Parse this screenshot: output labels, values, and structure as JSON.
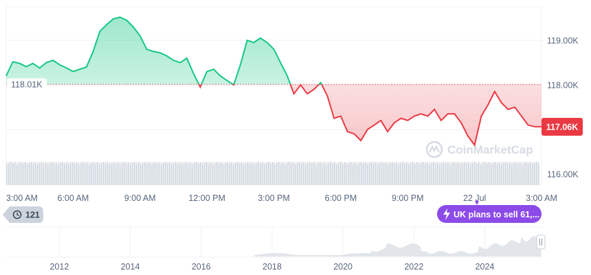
{
  "chart_data": {
    "type": "area",
    "currency_suffix": "K",
    "baseline": 118.01,
    "baseline_label": "118.01K",
    "current_price_label": "117.06K",
    "y_axis": {
      "ticks": [
        "119.00K",
        "118.00K",
        "117.00K",
        "116.00K"
      ],
      "tick_values": [
        119.0,
        118.0,
        117.0,
        116.0
      ]
    },
    "ylim": [
      115.75,
      119.75
    ],
    "xlim": [
      0,
      24
    ],
    "x_axis": {
      "tick_labels": [
        "3:00 AM",
        "6:00 AM",
        "9:00 AM",
        "12:00 PM",
        "3:00 PM",
        "6:00 PM",
        "9:00 PM",
        "22 Jul",
        "3:00 AM"
      ],
      "tick_hours": [
        0,
        3,
        6,
        9,
        12,
        15,
        18,
        21,
        24
      ]
    },
    "series": [
      {
        "x": [
          0.0,
          0.3,
          0.6,
          0.9,
          1.2,
          1.5,
          1.8,
          2.1,
          2.4,
          2.7,
          3.0,
          3.3,
          3.6,
          3.9,
          4.2,
          4.5,
          4.8,
          5.1,
          5.4,
          5.7,
          6.0,
          6.3,
          6.6,
          6.9,
          7.2,
          7.5,
          7.8,
          8.1,
          8.4,
          8.7,
          9.0,
          9.3,
          9.6,
          9.9,
          10.2,
          10.5,
          10.8,
          11.1,
          11.4,
          11.7,
          12.0,
          12.3,
          12.6,
          12.9,
          13.2,
          13.5,
          13.8,
          14.1,
          14.4,
          14.7,
          15.0,
          15.3,
          15.6,
          15.9,
          16.2,
          16.5,
          16.8,
          17.1,
          17.4,
          17.7,
          18.0,
          18.3,
          18.6,
          18.9,
          19.2,
          19.5,
          19.8,
          20.1,
          20.4,
          20.7,
          21.0,
          21.3,
          21.6,
          21.9,
          22.2,
          22.5,
          22.8,
          23.1,
          23.4,
          23.7,
          24.0
        ],
        "y": [
          118.2,
          118.52,
          118.48,
          118.41,
          118.48,
          118.38,
          118.5,
          118.55,
          118.45,
          118.38,
          118.3,
          118.35,
          118.4,
          118.75,
          119.2,
          119.35,
          119.48,
          119.52,
          119.45,
          119.3,
          119.1,
          118.8,
          118.75,
          118.72,
          118.65,
          118.55,
          118.5,
          118.6,
          118.25,
          117.95,
          118.3,
          118.35,
          118.2,
          118.1,
          118.0,
          118.45,
          119.0,
          118.95,
          119.05,
          118.95,
          118.8,
          118.5,
          118.2,
          117.8,
          118.0,
          117.8,
          117.9,
          118.05,
          117.75,
          117.25,
          117.3,
          116.95,
          116.9,
          116.75,
          117.0,
          117.1,
          117.2,
          116.95,
          117.15,
          117.25,
          117.2,
          117.3,
          117.35,
          117.3,
          117.45,
          117.2,
          117.35,
          117.35,
          117.15,
          116.85,
          116.65,
          117.3,
          117.55,
          117.85,
          117.6,
          117.45,
          117.5,
          117.3,
          117.1,
          117.06,
          117.06
        ]
      }
    ],
    "watermark": "CoinMarketCap",
    "navigator_x_labels": [
      "2012",
      "2014",
      "2016",
      "2018",
      "2020",
      "2022",
      "2024"
    ],
    "navigator_years": [
      2012,
      2014,
      2016,
      2018,
      2020,
      2022,
      2024
    ],
    "navigator_xlim": [
      2010.5,
      2025.6
    ],
    "events_badge": "121",
    "news_badge": "UK plans to sell 61,...",
    "colors": {
      "up": "#16c784",
      "down": "#ea3943",
      "axis": "#58667e",
      "grid": "#eff2f5",
      "news": "#8c4ae8"
    }
  }
}
